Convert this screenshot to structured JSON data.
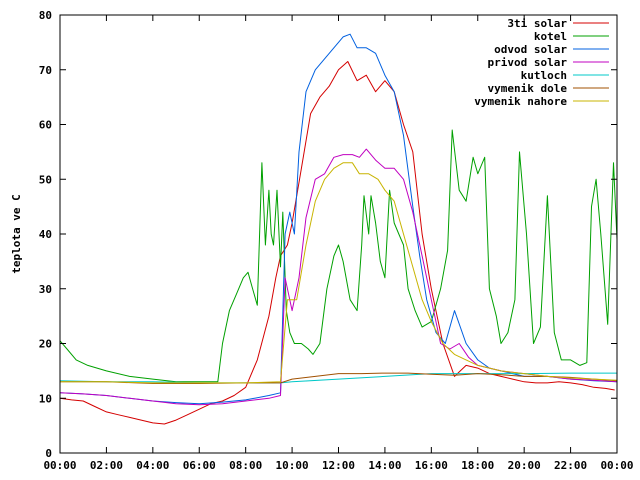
{
  "chart_data": {
    "type": "line",
    "title": "",
    "xlabel": "",
    "ylabel": "teplota ve C",
    "xlim": [
      0,
      24
    ],
    "ylim": [
      0,
      80
    ],
    "grid": false,
    "legend_placement": "top-right",
    "x_ticks": [
      "00:00",
      "02:00",
      "04:00",
      "06:00",
      "08:00",
      "10:00",
      "12:00",
      "14:00",
      "16:00",
      "18:00",
      "20:00",
      "22:00",
      "00:00"
    ],
    "y_ticks": [
      "0",
      "10",
      "20",
      "30",
      "40",
      "50",
      "60",
      "70",
      "80"
    ],
    "series": [
      {
        "name": "3ti solar",
        "color": "#d40000",
        "points": [
          [
            0,
            10
          ],
          [
            0.5,
            9.7
          ],
          [
            1,
            9.5
          ],
          [
            1.5,
            8.5
          ],
          [
            2,
            7.5
          ],
          [
            2.5,
            7
          ],
          [
            3,
            6.5
          ],
          [
            3.5,
            6
          ],
          [
            4,
            5.5
          ],
          [
            4.5,
            5.3
          ],
          [
            5,
            6
          ],
          [
            5.5,
            7
          ],
          [
            6,
            8
          ],
          [
            6.5,
            9
          ],
          [
            7,
            9.5
          ],
          [
            7.5,
            10.5
          ],
          [
            8,
            12
          ],
          [
            8.5,
            17
          ],
          [
            9,
            25
          ],
          [
            9.3,
            32
          ],
          [
            9.5,
            36
          ],
          [
            9.8,
            38
          ],
          [
            10,
            42
          ],
          [
            10.4,
            52
          ],
          [
            10.8,
            62
          ],
          [
            11.2,
            65
          ],
          [
            11.6,
            67
          ],
          [
            12,
            70
          ],
          [
            12.4,
            71.5
          ],
          [
            12.8,
            68
          ],
          [
            13.2,
            69
          ],
          [
            13.6,
            66
          ],
          [
            14,
            68
          ],
          [
            14.4,
            66
          ],
          [
            14.8,
            60
          ],
          [
            15.2,
            55
          ],
          [
            15.6,
            40
          ],
          [
            16,
            30
          ],
          [
            16.5,
            20
          ],
          [
            17,
            14
          ],
          [
            17.5,
            16
          ],
          [
            18,
            15.5
          ],
          [
            18.5,
            14.5
          ],
          [
            19,
            14
          ],
          [
            19.5,
            13.5
          ],
          [
            20,
            13
          ],
          [
            20.5,
            12.8
          ],
          [
            21,
            12.8
          ],
          [
            21.5,
            13
          ],
          [
            22,
            12.8
          ],
          [
            22.5,
            12.5
          ],
          [
            23,
            12
          ],
          [
            23.5,
            11.8
          ],
          [
            23.9,
            11.5
          ]
        ]
      },
      {
        "name": "kotel",
        "color": "#00a000",
        "points": [
          [
            0,
            20.5
          ],
          [
            0.3,
            19
          ],
          [
            0.7,
            17
          ],
          [
            1.2,
            16
          ],
          [
            2,
            15
          ],
          [
            3,
            14
          ],
          [
            4,
            13.5
          ],
          [
            5,
            13
          ],
          [
            6,
            13
          ],
          [
            6.8,
            13
          ],
          [
            7,
            20
          ],
          [
            7.3,
            26
          ],
          [
            7.6,
            29
          ],
          [
            7.9,
            32
          ],
          [
            8.1,
            33
          ],
          [
            8.3,
            30
          ],
          [
            8.5,
            27
          ],
          [
            8.7,
            53
          ],
          [
            8.85,
            38
          ],
          [
            9.0,
            48
          ],
          [
            9.1,
            40
          ],
          [
            9.2,
            38
          ],
          [
            9.35,
            48
          ],
          [
            9.5,
            34
          ],
          [
            9.6,
            44
          ],
          [
            9.75,
            26
          ],
          [
            9.9,
            22
          ],
          [
            10.1,
            20
          ],
          [
            10.4,
            20
          ],
          [
            10.7,
            19
          ],
          [
            10.9,
            18
          ],
          [
            11.2,
            20
          ],
          [
            11.5,
            30
          ],
          [
            11.8,
            36
          ],
          [
            12.0,
            38
          ],
          [
            12.2,
            35
          ],
          [
            12.5,
            28
          ],
          [
            12.8,
            26
          ],
          [
            13.0,
            38
          ],
          [
            13.1,
            47
          ],
          [
            13.3,
            40
          ],
          [
            13.4,
            47
          ],
          [
            13.6,
            42
          ],
          [
            13.8,
            35
          ],
          [
            14.0,
            32
          ],
          [
            14.2,
            48
          ],
          [
            14.4,
            42
          ],
          [
            14.6,
            40
          ],
          [
            14.8,
            38
          ],
          [
            15.0,
            30
          ],
          [
            15.3,
            26
          ],
          [
            15.6,
            23
          ],
          [
            16.0,
            24
          ],
          [
            16.4,
            30
          ],
          [
            16.7,
            37
          ],
          [
            16.9,
            59
          ],
          [
            17.2,
            48
          ],
          [
            17.5,
            46
          ],
          [
            17.8,
            54
          ],
          [
            18.0,
            51
          ],
          [
            18.3,
            54
          ],
          [
            18.5,
            30
          ],
          [
            18.8,
            25
          ],
          [
            19.0,
            20
          ],
          [
            19.3,
            22
          ],
          [
            19.6,
            28
          ],
          [
            19.8,
            55
          ],
          [
            20.1,
            40
          ],
          [
            20.4,
            20
          ],
          [
            20.7,
            23
          ],
          [
            21.0,
            47
          ],
          [
            21.3,
            22
          ],
          [
            21.6,
            17
          ],
          [
            22.0,
            17
          ],
          [
            22.4,
            16
          ],
          [
            22.7,
            16.5
          ],
          [
            22.9,
            45
          ],
          [
            23.1,
            50
          ],
          [
            23.3,
            40
          ],
          [
            23.6,
            23.5
          ],
          [
            23.85,
            53
          ],
          [
            24,
            39
          ]
        ]
      },
      {
        "name": "odvod solar",
        "color": "#0060e0",
        "points": [
          [
            0,
            11
          ],
          [
            1,
            10.8
          ],
          [
            2,
            10.5
          ],
          [
            3,
            10
          ],
          [
            4,
            9.5
          ],
          [
            5,
            9.2
          ],
          [
            6,
            9
          ],
          [
            7,
            9.3
          ],
          [
            8,
            9.7
          ],
          [
            9,
            10.5
          ],
          [
            9.5,
            11
          ],
          [
            9.7,
            40
          ],
          [
            9.9,
            44
          ],
          [
            10.1,
            40
          ],
          [
            10.3,
            55
          ],
          [
            10.6,
            66
          ],
          [
            11,
            70
          ],
          [
            11.4,
            72
          ],
          [
            11.8,
            74
          ],
          [
            12.2,
            76
          ],
          [
            12.5,
            76.5
          ],
          [
            12.8,
            74
          ],
          [
            13.2,
            74
          ],
          [
            13.6,
            73
          ],
          [
            14,
            69
          ],
          [
            14.4,
            66
          ],
          [
            14.8,
            58
          ],
          [
            15.2,
            45
          ],
          [
            15.5,
            36
          ],
          [
            15.8,
            28
          ],
          [
            16.2,
            22
          ],
          [
            16.6,
            20
          ],
          [
            17,
            26
          ],
          [
            17.5,
            20
          ],
          [
            18,
            17
          ],
          [
            18.5,
            15.5
          ],
          [
            19,
            15
          ],
          [
            20,
            14
          ],
          [
            21,
            14
          ],
          [
            22,
            13.5
          ],
          [
            23,
            13.2
          ],
          [
            24,
            13
          ]
        ]
      },
      {
        "name": "privod solar",
        "color": "#c000c0",
        "points": [
          [
            0,
            11
          ],
          [
            1,
            10.8
          ],
          [
            2,
            10.5
          ],
          [
            3,
            10
          ],
          [
            4,
            9.5
          ],
          [
            5,
            9
          ],
          [
            6,
            8.8
          ],
          [
            7,
            9
          ],
          [
            8,
            9.5
          ],
          [
            9,
            10
          ],
          [
            9.5,
            10.5
          ],
          [
            9.7,
            32
          ],
          [
            10,
            26
          ],
          [
            10.3,
            32
          ],
          [
            10.6,
            43
          ],
          [
            11,
            50
          ],
          [
            11.4,
            51
          ],
          [
            11.8,
            54
          ],
          [
            12.2,
            54.5
          ],
          [
            12.6,
            54.5
          ],
          [
            12.9,
            54
          ],
          [
            13.2,
            55.5
          ],
          [
            13.6,
            53.5
          ],
          [
            14,
            52
          ],
          [
            14.4,
            52
          ],
          [
            14.8,
            50
          ],
          [
            15.2,
            44
          ],
          [
            15.6,
            36
          ],
          [
            16,
            28
          ],
          [
            16.4,
            20
          ],
          [
            16.8,
            19
          ],
          [
            17.2,
            20
          ],
          [
            17.6,
            17.5
          ],
          [
            18,
            16
          ],
          [
            18.5,
            15.5
          ],
          [
            19,
            15
          ],
          [
            20,
            14.5
          ],
          [
            21,
            14
          ],
          [
            22,
            13.5
          ],
          [
            23,
            13.3
          ],
          [
            24,
            13
          ]
        ]
      },
      {
        "name": "kutloch",
        "color": "#00c8c8",
        "points": [
          [
            0,
            13.2
          ],
          [
            2,
            13
          ],
          [
            4,
            13
          ],
          [
            6,
            12.8
          ],
          [
            8,
            12.8
          ],
          [
            9.5,
            12.8
          ],
          [
            10,
            13
          ],
          [
            12,
            13.5
          ],
          [
            14,
            14
          ],
          [
            16,
            14.5
          ],
          [
            18,
            14.5
          ],
          [
            20,
            14.5
          ],
          [
            22,
            14.6
          ],
          [
            24,
            14.6
          ]
        ]
      },
      {
        "name": "vymenik dole",
        "color": "#a05000",
        "points": [
          [
            0,
            13
          ],
          [
            2,
            13
          ],
          [
            4,
            12.7
          ],
          [
            6,
            12.7
          ],
          [
            8,
            12.8
          ],
          [
            9.5,
            12.8
          ],
          [
            10,
            13.5
          ],
          [
            11,
            14
          ],
          [
            12,
            14.5
          ],
          [
            13,
            14.5
          ],
          [
            14,
            14.6
          ],
          [
            15,
            14.6
          ],
          [
            16,
            14.4
          ],
          [
            17,
            14.2
          ],
          [
            18,
            14.5
          ],
          [
            19,
            14.3
          ],
          [
            20,
            14
          ],
          [
            21,
            14
          ],
          [
            22,
            13.8
          ],
          [
            23,
            13.5
          ],
          [
            24,
            13.2
          ]
        ]
      },
      {
        "name": "vymenik nahore",
        "color": "#c8b400",
        "points": [
          [
            0,
            13
          ],
          [
            2,
            13
          ],
          [
            4,
            12.8
          ],
          [
            6,
            12.8
          ],
          [
            8,
            12.8
          ],
          [
            9.5,
            13
          ],
          [
            9.8,
            28
          ],
          [
            10.2,
            28
          ],
          [
            10.6,
            38
          ],
          [
            11,
            46
          ],
          [
            11.4,
            50
          ],
          [
            11.8,
            52
          ],
          [
            12.2,
            53
          ],
          [
            12.6,
            53
          ],
          [
            12.9,
            51
          ],
          [
            13.3,
            51
          ],
          [
            13.7,
            50
          ],
          [
            14,
            48
          ],
          [
            14.4,
            46
          ],
          [
            14.8,
            40
          ],
          [
            15.2,
            34
          ],
          [
            15.6,
            28
          ],
          [
            16,
            24
          ],
          [
            16.5,
            20
          ],
          [
            17,
            18
          ],
          [
            17.5,
            17
          ],
          [
            18,
            16
          ],
          [
            19,
            15
          ],
          [
            20,
            14.5
          ],
          [
            21,
            14
          ],
          [
            22,
            13.7
          ],
          [
            23,
            13.5
          ],
          [
            24,
            13.3
          ]
        ]
      }
    ]
  }
}
